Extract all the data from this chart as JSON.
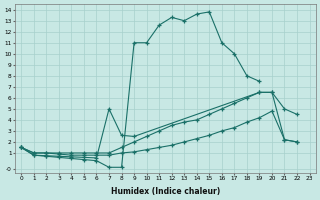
{
  "bg_color": "#c8e8e4",
  "grid_color": "#a8d0cc",
  "line_color": "#1a7068",
  "xlabel": "Humidex (Indice chaleur)",
  "line1_x": [
    0,
    1,
    2,
    3,
    4,
    5,
    6,
    7,
    8,
    9,
    10,
    11,
    12,
    13,
    14,
    15,
    16,
    17,
    18,
    19
  ],
  "line1_y": [
    1.5,
    0.8,
    0.7,
    0.6,
    0.5,
    0.4,
    0.3,
    -0.3,
    -0.3,
    11.0,
    11.0,
    12.6,
    13.3,
    13.0,
    13.6,
    13.8,
    11.0,
    10.0,
    8.0,
    7.5
  ],
  "line2_x": [
    0,
    1,
    2,
    3,
    4,
    5,
    6,
    7,
    8,
    9,
    19,
    20,
    21,
    22
  ],
  "line2_y": [
    1.5,
    0.8,
    0.75,
    0.7,
    0.65,
    0.6,
    0.55,
    5.0,
    2.6,
    2.5,
    6.5,
    6.5,
    5.0,
    4.5
  ],
  "line3_x": [
    0,
    1,
    2,
    3,
    4,
    5,
    6,
    7,
    8,
    9,
    10,
    11,
    12,
    13,
    14,
    15,
    16,
    17,
    18,
    19,
    20,
    21,
    22
  ],
  "line3_y": [
    1.5,
    1.0,
    1.0,
    1.0,
    1.0,
    1.0,
    1.0,
    1.0,
    1.5,
    2.0,
    2.5,
    3.0,
    3.5,
    3.8,
    4.0,
    4.5,
    5.0,
    5.5,
    6.0,
    6.5,
    6.5,
    2.2,
    2.0
  ],
  "line4_x": [
    0,
    1,
    2,
    3,
    4,
    5,
    6,
    7,
    8,
    9,
    10,
    11,
    12,
    13,
    14,
    15,
    16,
    17,
    18,
    19,
    20,
    21,
    22
  ],
  "line4_y": [
    1.5,
    1.0,
    1.0,
    0.9,
    0.8,
    0.8,
    0.8,
    0.8,
    1.0,
    1.1,
    1.3,
    1.5,
    1.7,
    2.0,
    2.3,
    2.6,
    3.0,
    3.3,
    3.8,
    4.2,
    4.8,
    2.2,
    2.0
  ],
  "ytick_labels": [
    "-0",
    "1",
    "2",
    "3",
    "4",
    "5",
    "6",
    "7",
    "8",
    "9",
    "10",
    "11",
    "12",
    "13",
    "14"
  ],
  "ylim": [
    -0.8,
    14.5
  ],
  "xlim": [
    -0.5,
    23.5
  ]
}
